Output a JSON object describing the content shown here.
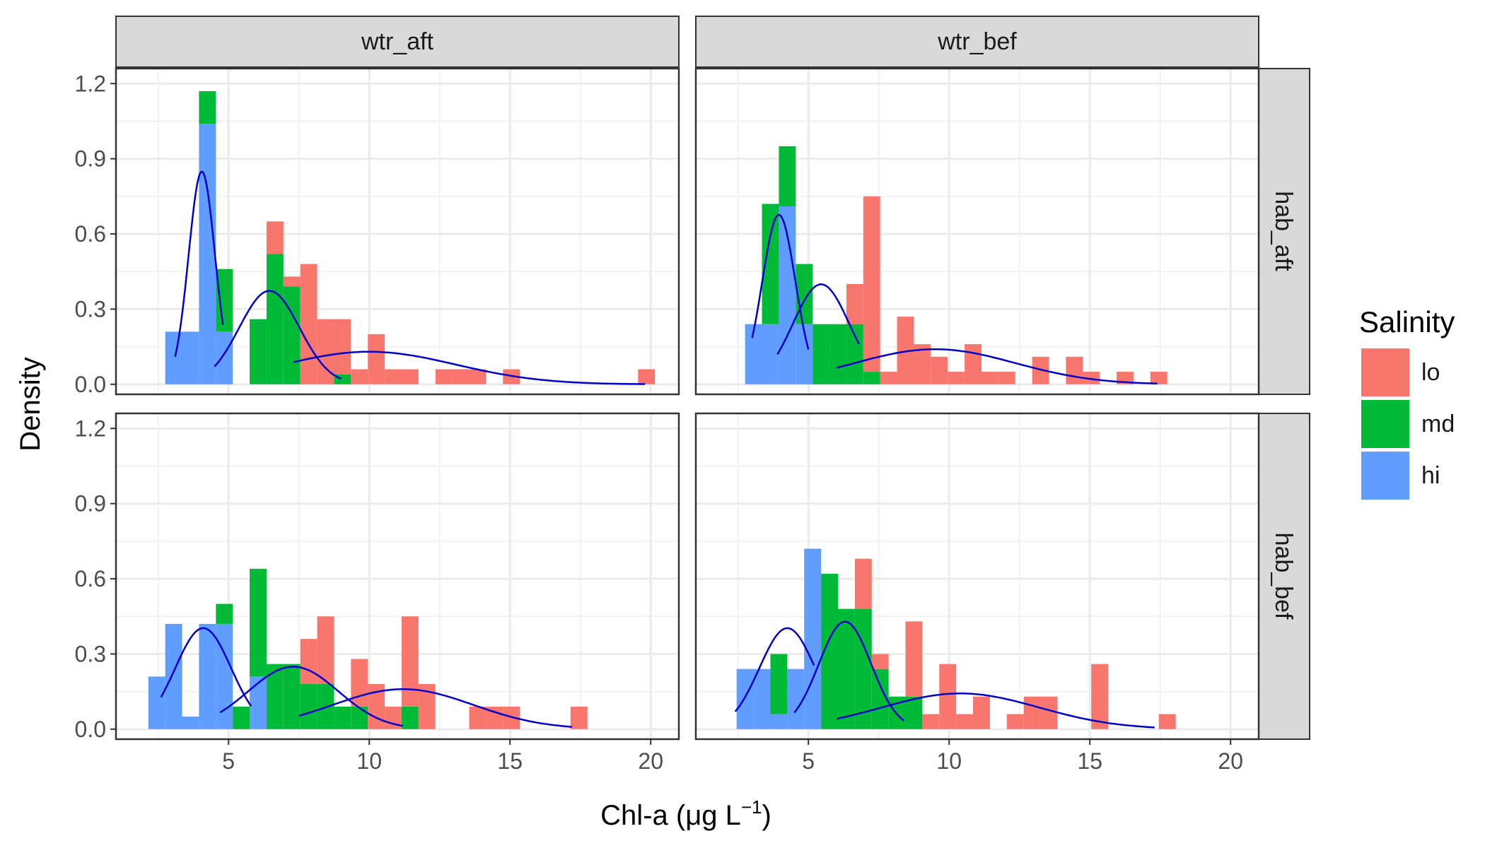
{
  "chart_data": {
    "type": "bar",
    "subtype": "faceted-histogram-with-density-curves",
    "xlabel": "Chl-a (μg L",
    "xlabel_sup": "−1",
    "xlabel_close": ")",
    "ylabel": "Density",
    "xlim": [
      1,
      21
    ],
    "ylim": [
      -0.04,
      1.26
    ],
    "xticks": [
      5,
      10,
      15,
      20
    ],
    "yticks": [
      0.0,
      0.3,
      0.6,
      0.9,
      1.2
    ],
    "ytick_labels": [
      "0.0",
      "0.3",
      "0.6",
      "0.9",
      "1.2"
    ],
    "grid": true,
    "bin_width": 0.6,
    "legend": {
      "title": "Salinity",
      "position": "right",
      "entries": [
        {
          "label": "lo",
          "color": "#F8766D"
        },
        {
          "label": "md",
          "color": "#00BA38"
        },
        {
          "label": "hi",
          "color": "#619CFF"
        }
      ]
    },
    "curve_color": "#0000CC",
    "columns": [
      "wtr_aft",
      "wtr_bef"
    ],
    "rows": [
      "hab_aft",
      "hab_bef"
    ],
    "panels": [
      {
        "col": "wtr_aft",
        "row": "hab_aft",
        "bars": [
          {
            "x": 3.05,
            "hi": 0.21
          },
          {
            "x": 3.65,
            "hi": 0.21
          },
          {
            "x": 4.25,
            "hi": 1.04,
            "md": 0.13
          },
          {
            "x": 4.85,
            "hi": 0.21,
            "md": 0.25
          },
          {
            "x": 6.05,
            "md": 0.26
          },
          {
            "x": 6.65,
            "md": 0.52,
            "lo": 0.13
          },
          {
            "x": 7.25,
            "md": 0.39,
            "lo": 0.04
          },
          {
            "x": 7.85,
            "lo": 0.48
          },
          {
            "x": 8.45,
            "lo": 0.26
          },
          {
            "x": 9.05,
            "md": 0.04,
            "lo": 0.22
          },
          {
            "x": 9.65,
            "lo": 0.06
          },
          {
            "x": 10.25,
            "lo": 0.2
          },
          {
            "x": 10.85,
            "lo": 0.06
          },
          {
            "x": 11.45,
            "lo": 0.06
          },
          {
            "x": 12.65,
            "lo": 0.06
          },
          {
            "x": 13.25,
            "lo": 0.06
          },
          {
            "x": 13.85,
            "lo": 0.06
          },
          {
            "x": 15.05,
            "lo": 0.06
          },
          {
            "x": 19.85,
            "lo": 0.06
          }
        ],
        "curves": [
          {
            "series": "hi",
            "mean": 4.05,
            "sd": 0.47,
            "scale": 1.0,
            "from": 3.1,
            "to": 4.8
          },
          {
            "series": "md",
            "mean": 6.45,
            "sd": 1.07,
            "scale": 1.0,
            "from": 4.5,
            "to": 9.0
          },
          {
            "series": "lo",
            "mean": 10.0,
            "sd": 3.07,
            "scale": 1.0,
            "from": 7.3,
            "to": 19.8
          }
        ]
      },
      {
        "col": "wtr_bef",
        "row": "hab_aft",
        "bars": [
          {
            "x": 3.05,
            "hi": 0.24
          },
          {
            "x": 3.65,
            "hi": 0.24,
            "md": 0.48
          },
          {
            "x": 4.25,
            "hi": 0.71,
            "md": 0.24
          },
          {
            "x": 4.85,
            "hi": 0.24,
            "md": 0.24
          },
          {
            "x": 5.45,
            "md": 0.24
          },
          {
            "x": 6.05,
            "md": 0.24
          },
          {
            "x": 6.65,
            "md": 0.24,
            "lo": 0.16
          },
          {
            "x": 7.25,
            "md": 0.05,
            "lo": 0.7
          },
          {
            "x": 7.85,
            "lo": 0.05
          },
          {
            "x": 8.45,
            "lo": 0.27
          },
          {
            "x": 9.05,
            "lo": 0.16
          },
          {
            "x": 9.65,
            "lo": 0.11
          },
          {
            "x": 10.25,
            "lo": 0.05
          },
          {
            "x": 10.85,
            "lo": 0.16
          },
          {
            "x": 11.45,
            "lo": 0.05
          },
          {
            "x": 12.05,
            "lo": 0.05
          },
          {
            "x": 13.25,
            "lo": 0.11
          },
          {
            "x": 14.45,
            "lo": 0.11
          },
          {
            "x": 15.05,
            "lo": 0.05
          },
          {
            "x": 16.25,
            "lo": 0.05
          },
          {
            "x": 17.45,
            "lo": 0.05
          }
        ],
        "curves": [
          {
            "series": "hi",
            "mean": 3.95,
            "sd": 0.59,
            "scale": 1.0,
            "from": 3.0,
            "to": 5.0
          },
          {
            "series": "md",
            "mean": 5.45,
            "sd": 1.0,
            "scale": 1.0,
            "from": 3.9,
            "to": 6.8
          },
          {
            "series": "lo",
            "mean": 9.5,
            "sd": 2.85,
            "scale": 1.0,
            "from": 6.0,
            "to": 17.4
          }
        ]
      },
      {
        "col": "wtr_aft",
        "row": "hab_bef",
        "bars": [
          {
            "x": 2.45,
            "hi": 0.21
          },
          {
            "x": 3.05,
            "hi": 0.42
          },
          {
            "x": 3.65,
            "hi": 0.05
          },
          {
            "x": 4.25,
            "hi": 0.42
          },
          {
            "x": 4.85,
            "hi": 0.42,
            "md": 0.08
          },
          {
            "x": 5.45,
            "md": 0.09
          },
          {
            "x": 6.05,
            "hi": 0.21,
            "md": 0.43
          },
          {
            "x": 6.65,
            "md": 0.26
          },
          {
            "x": 7.25,
            "md": 0.26
          },
          {
            "x": 7.85,
            "md": 0.18,
            "lo": 0.18
          },
          {
            "x": 8.45,
            "md": 0.18,
            "lo": 0.27
          },
          {
            "x": 9.05,
            "md": 0.09
          },
          {
            "x": 9.65,
            "md": 0.09,
            "lo": 0.19
          },
          {
            "x": 10.25,
            "lo": 0.18
          },
          {
            "x": 10.85,
            "lo": 0.09
          },
          {
            "x": 11.45,
            "md": 0.09,
            "lo": 0.36
          },
          {
            "x": 12.05,
            "lo": 0.18
          },
          {
            "x": 13.85,
            "lo": 0.09
          },
          {
            "x": 14.45,
            "lo": 0.09
          },
          {
            "x": 15.05,
            "lo": 0.09
          },
          {
            "x": 17.45,
            "lo": 0.09
          }
        ],
        "curves": [
          {
            "series": "hi",
            "mean": 4.1,
            "sd": 0.99,
            "scale": 1.0,
            "from": 2.6,
            "to": 5.8
          },
          {
            "series": "md",
            "mean": 7.3,
            "sd": 1.6,
            "scale": 1.0,
            "from": 4.7,
            "to": 11.2
          },
          {
            "series": "lo",
            "mean": 11.2,
            "sd": 2.5,
            "scale": 1.0,
            "from": 7.5,
            "to": 17.2
          }
        ]
      },
      {
        "col": "wtr_bef",
        "row": "hab_bef",
        "bars": [
          {
            "x": 2.75,
            "hi": 0.24
          },
          {
            "x": 3.35,
            "hi": 0.24
          },
          {
            "x": 3.95,
            "hi": 0.06,
            "md": 0.24
          },
          {
            "x": 4.55,
            "hi": 0.24
          },
          {
            "x": 5.15,
            "hi": 0.72
          },
          {
            "x": 5.75,
            "md": 0.62
          },
          {
            "x": 6.35,
            "md": 0.48
          },
          {
            "x": 6.95,
            "md": 0.48,
            "lo": 0.2
          },
          {
            "x": 7.55,
            "md": 0.24,
            "lo": 0.06
          },
          {
            "x": 8.15,
            "md": 0.13
          },
          {
            "x": 8.75,
            "md": 0.13,
            "lo": 0.3
          },
          {
            "x": 9.35,
            "lo": 0.06
          },
          {
            "x": 9.95,
            "lo": 0.26
          },
          {
            "x": 10.55,
            "lo": 0.06
          },
          {
            "x": 11.15,
            "lo": 0.13
          },
          {
            "x": 12.35,
            "lo": 0.06
          },
          {
            "x": 12.95,
            "lo": 0.13
          },
          {
            "x": 13.55,
            "lo": 0.13
          },
          {
            "x": 15.35,
            "lo": 0.26
          },
          {
            "x": 17.75,
            "lo": 0.06
          }
        ],
        "curves": [
          {
            "series": "hi",
            "mean": 4.25,
            "sd": 0.99,
            "scale": 1.0,
            "from": 2.4,
            "to": 5.2
          },
          {
            "series": "md",
            "mean": 6.3,
            "sd": 0.93,
            "scale": 1.0,
            "from": 4.5,
            "to": 8.4
          },
          {
            "series": "lo",
            "mean": 10.4,
            "sd": 2.8,
            "scale": 1.0,
            "from": 6.0,
            "to": 17.3
          }
        ]
      }
    ]
  }
}
